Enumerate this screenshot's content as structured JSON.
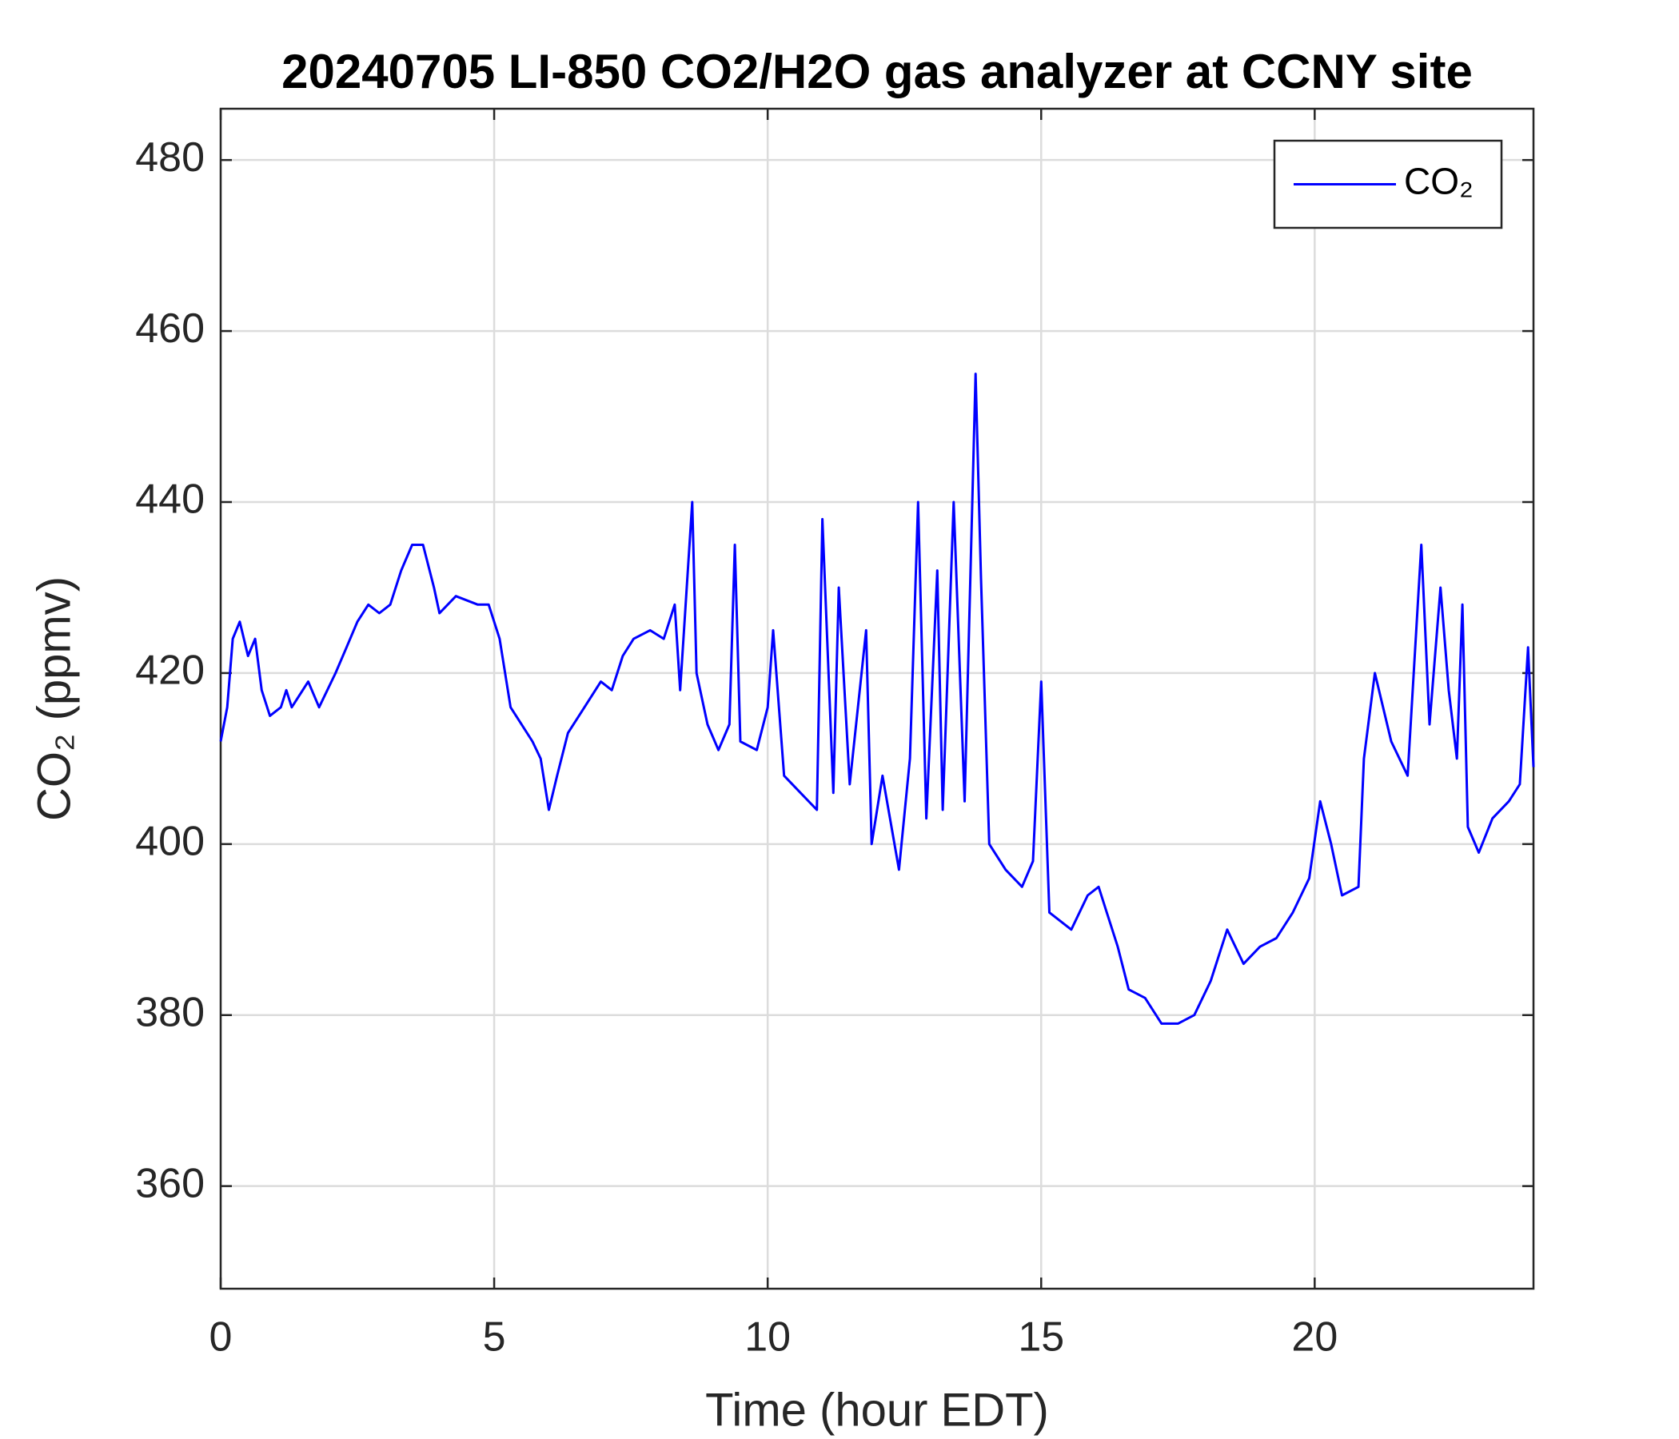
{
  "chart_data": {
    "type": "line",
    "title": "20240705 LI-850 CO2/H2O gas analyzer at CCNY site",
    "x_label": "Time (hour EDT)",
    "y_label": "CO₂ (ppmv)",
    "xlim": [
      0,
      24
    ],
    "ylim": [
      348,
      486
    ],
    "xticks": [
      0,
      5,
      10,
      15,
      20
    ],
    "yticks": [
      360,
      380,
      400,
      420,
      440,
      460,
      480
    ],
    "grid": true,
    "legend": "northeast",
    "x": [
      0,
      0.12,
      0.22,
      0.35,
      0.5,
      0.63,
      0.75,
      0.9,
      1.1,
      1.2,
      1.3,
      1.6,
      1.8,
      2.1,
      2.3,
      2.5,
      2.7,
      2.9,
      3.1,
      3.3,
      3.5,
      3.7,
      3.9,
      4.0,
      4.3,
      4.7,
      4.9,
      5.1,
      5.3,
      5.5,
      5.7,
      5.85,
      6.0,
      6.15,
      6.35,
      6.65,
      6.95,
      7.15,
      7.35,
      7.55,
      7.85,
      8.1,
      8.3,
      8.4,
      8.62,
      8.7,
      8.9,
      9.1,
      9.3,
      9.4,
      9.5,
      9.8,
      10.0,
      10.1,
      10.3,
      10.6,
      10.9,
      11.0,
      11.2,
      11.3,
      11.5,
      11.8,
      11.9,
      12.1,
      12.4,
      12.6,
      12.75,
      12.9,
      13.1,
      13.2,
      13.4,
      13.6,
      13.8,
      13.9,
      14.05,
      14.35,
      14.65,
      14.85,
      15.0,
      15.15,
      15.55,
      15.85,
      16.05,
      16.2,
      16.4,
      16.6,
      16.9,
      17.2,
      17.5,
      17.8,
      18.1,
      18.4,
      18.7,
      19.0,
      19.3,
      19.6,
      19.9,
      20.1,
      20.3,
      20.5,
      20.8,
      20.9,
      21.1,
      21.4,
      21.7,
      21.95,
      22.1,
      22.3,
      22.45,
      22.6,
      22.7,
      22.8,
      23.0,
      23.25,
      23.55,
      23.75,
      23.9,
      24.0
    ],
    "series": [
      {
        "name": "CO₂",
        "color": "#0000ff",
        "values": [
          412,
          416,
          424,
          426,
          422,
          424,
          418,
          415,
          416,
          418,
          416,
          419,
          416,
          420,
          423,
          426,
          428,
          427,
          428,
          432,
          435,
          435,
          430,
          427,
          429,
          428,
          428,
          424,
          416,
          414,
          412,
          410,
          404,
          408,
          413,
          416,
          419,
          418,
          422,
          424,
          425,
          424,
          428,
          418,
          440,
          420,
          414,
          411,
          414,
          435,
          412,
          411,
          416,
          425,
          408,
          406,
          404,
          438,
          406,
          430,
          407,
          425,
          400,
          408,
          397,
          410,
          440,
          403,
          432,
          404,
          440,
          405,
          455,
          431,
          400,
          397,
          395,
          398,
          419,
          392,
          390,
          394,
          395,
          392,
          388,
          383,
          382,
          379,
          379,
          380,
          384,
          390,
          386,
          388,
          389,
          392,
          396,
          405,
          400,
          394,
          395,
          410,
          420,
          412,
          408,
          435,
          414,
          430,
          418,
          410,
          428,
          402,
          399,
          403,
          405,
          407,
          423,
          409
        ]
      }
    ]
  }
}
